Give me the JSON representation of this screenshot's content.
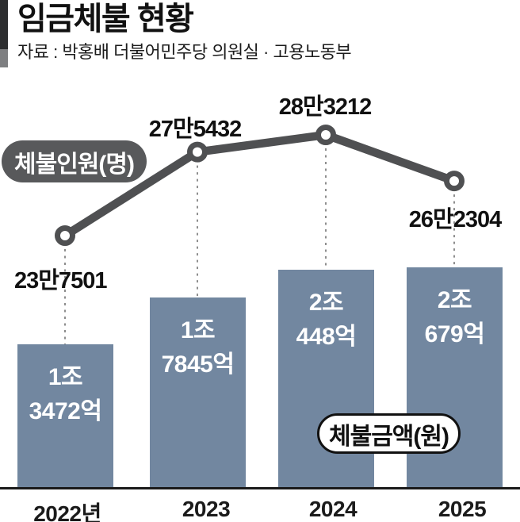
{
  "header": {
    "title": "임금체불 현황",
    "source": "자료 : 박홍배 더불어민주당 의원실 · 고용노동부"
  },
  "badges": {
    "people": "체불인원(명)",
    "amount": "체불금액(원)"
  },
  "chart_data": {
    "type": "combo",
    "categories": [
      "2022년",
      "2023",
      "2024",
      "2025"
    ],
    "series": [
      {
        "name": "체불인원(명)",
        "chart": "line",
        "unit": "명",
        "values": [
          237501,
          275432,
          283212,
          262304
        ],
        "point_labels": [
          "23만7501",
          "27만5432",
          "28만3212",
          "26만2304"
        ]
      },
      {
        "name": "체불금액(원)",
        "chart": "bar",
        "unit": "억원",
        "values": [
          13472,
          17845,
          20448,
          20679
        ],
        "bar_labels": [
          [
            "1조",
            "3472억"
          ],
          [
            "1조",
            "7845억"
          ],
          [
            "2조",
            "448억"
          ],
          [
            "2조",
            "679억"
          ]
        ]
      }
    ],
    "colors": {
      "bar": "#7287a0",
      "line": "#4f5052",
      "marker_fill": "#ffffff",
      "dashed": "#8e8e8e",
      "baseline": "#1a1a1a",
      "people_badge_bg": "#58595b",
      "amount_badge_bg": "#ffffff"
    },
    "layout_hints": {
      "line_label_positions": [
        "below-left",
        "above",
        "above",
        "below"
      ],
      "legend": "inline-badges",
      "grid": false
    }
  }
}
